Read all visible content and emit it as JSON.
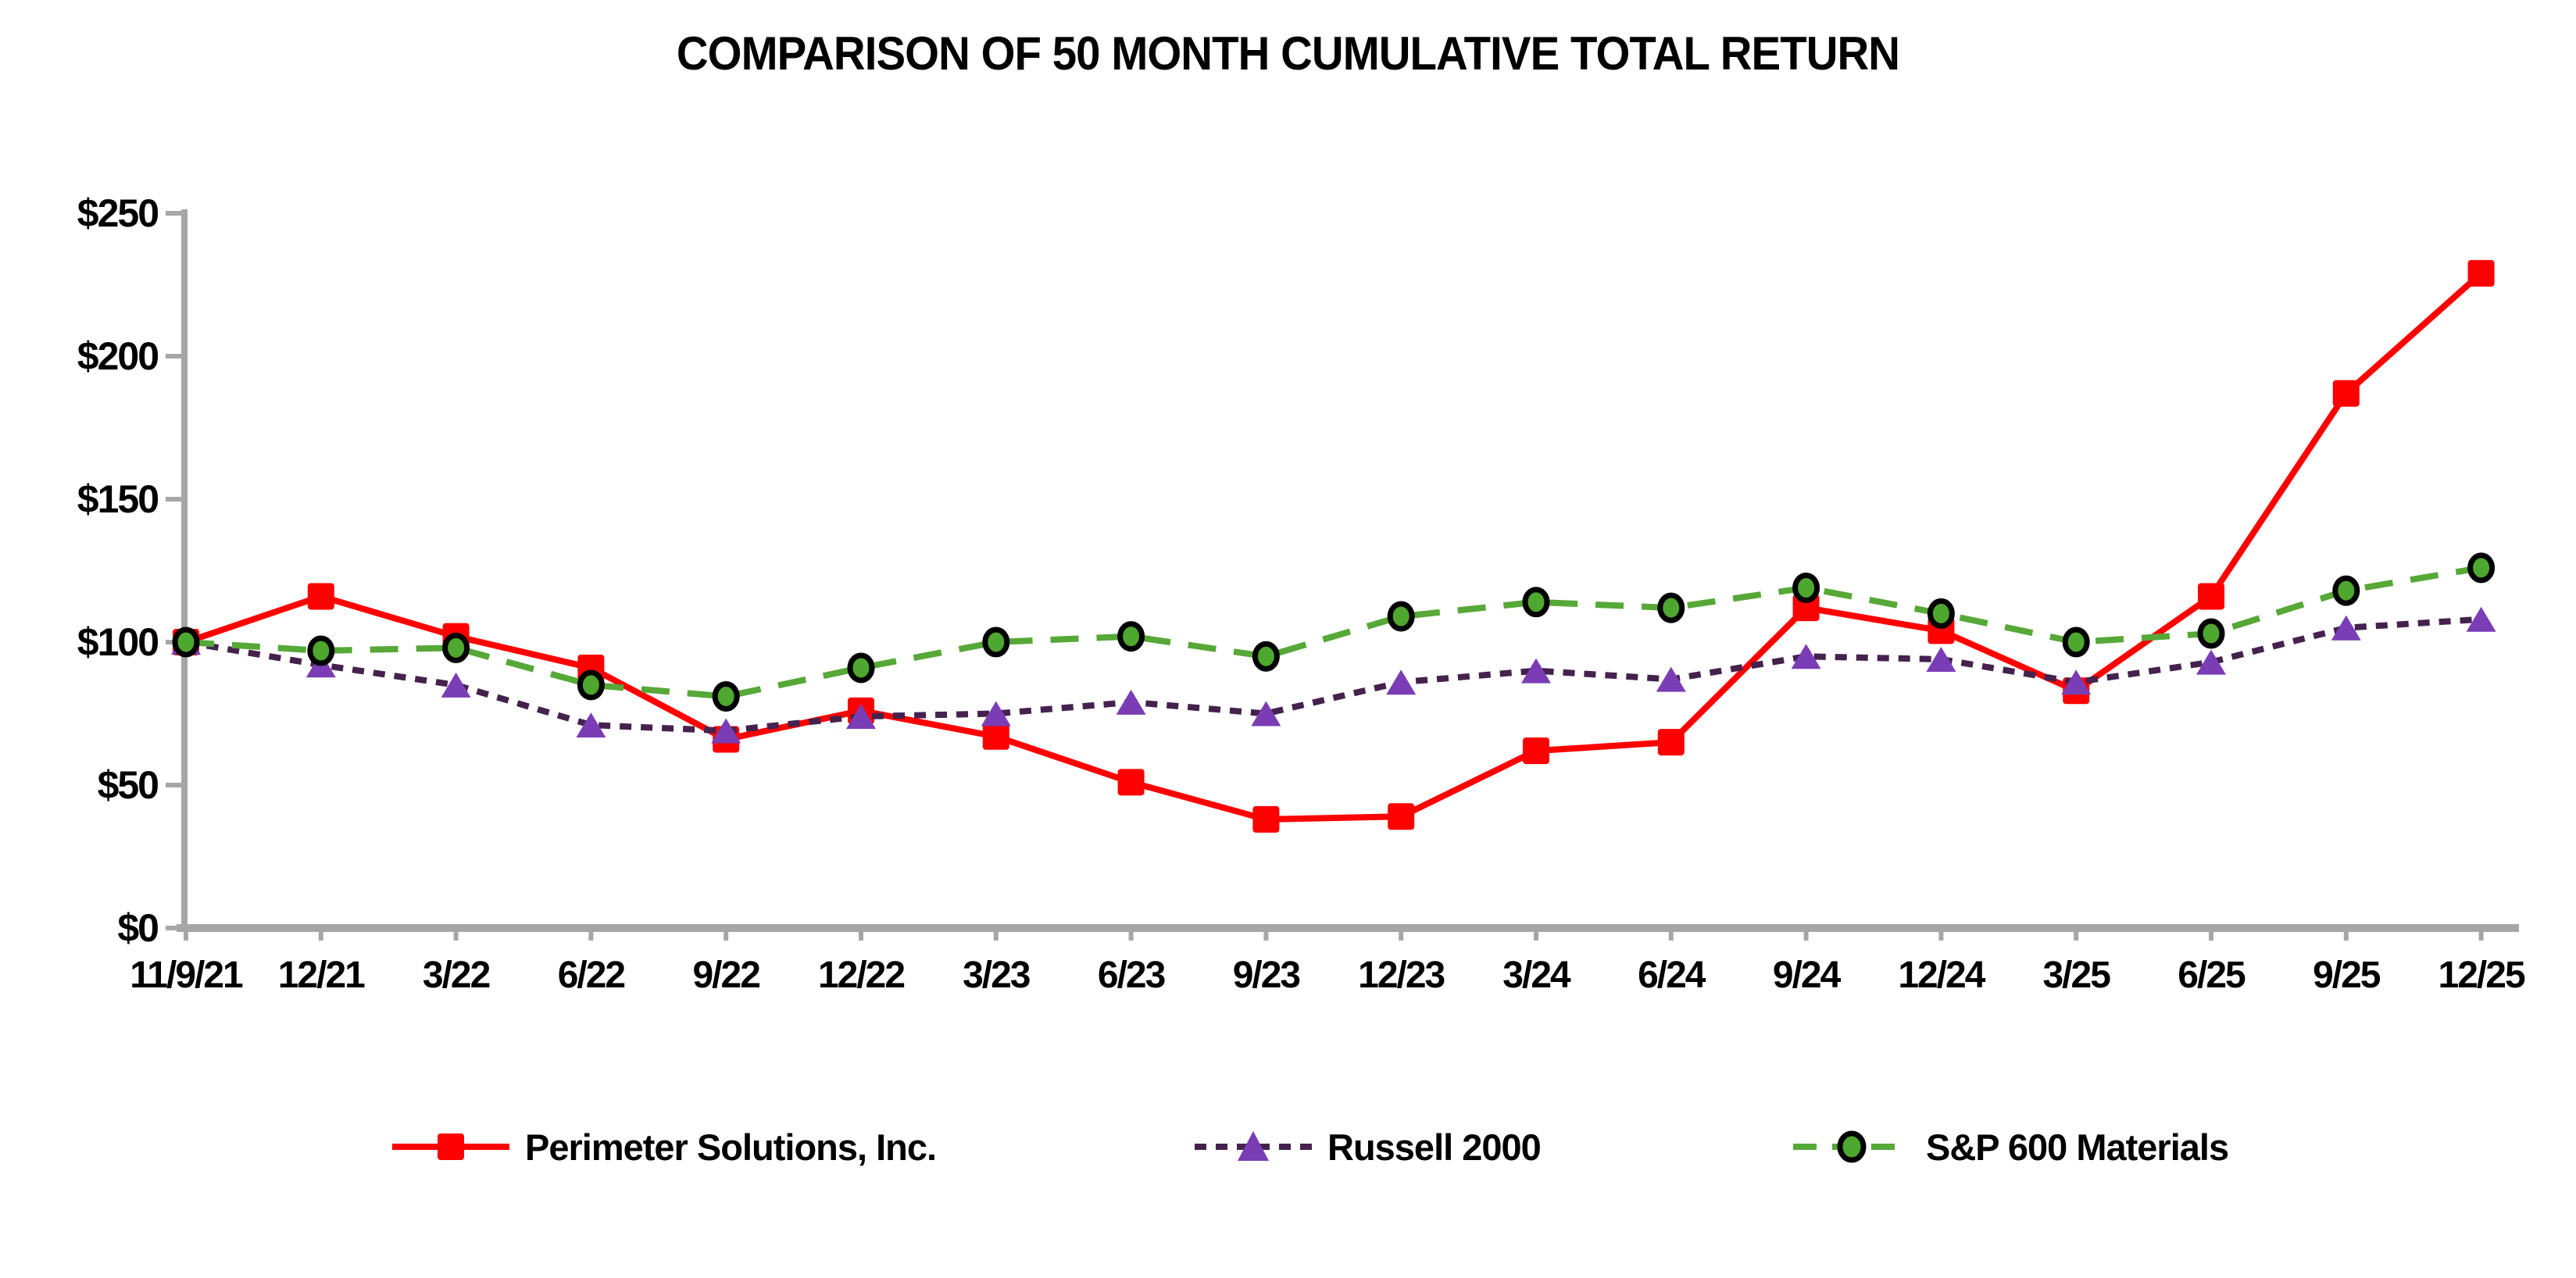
{
  "chart_data": {
    "type": "line",
    "title": "COMPARISON OF 50 MONTH CUMULATIVE TOTAL RETURN",
    "xlabel": "",
    "ylabel": "",
    "ylim": [
      0,
      250
    ],
    "grid": false,
    "legend_position": "bottom",
    "background_color": "#ffffff",
    "axis_color": "#a6a6a6",
    "text_color": "#000000",
    "y_ticks": [
      {
        "label": "$0",
        "value": 0
      },
      {
        "label": "$50",
        "value": 50
      },
      {
        "label": "$100",
        "value": 100
      },
      {
        "label": "$150",
        "value": 150
      },
      {
        "label": "$200",
        "value": 200
      },
      {
        "label": "$250",
        "value": 250
      }
    ],
    "categories": [
      "11/9/21",
      "12/21",
      "3/22",
      "6/22",
      "9/22",
      "12/22",
      "3/23",
      "6/23",
      "9/23",
      "12/23",
      "3/24",
      "6/24",
      "9/24",
      "12/24",
      "3/25",
      "6/25",
      "9/25",
      "12/25"
    ],
    "series": [
      {
        "name": "Perimeter Solutions, Inc.",
        "marker": "square",
        "line_style": "solid",
        "line_color": "#ff0000",
        "marker_color": "#ff0000",
        "values": [
          100,
          116,
          102,
          91,
          66,
          76,
          67,
          51,
          38,
          39,
          62,
          65,
          112,
          104,
          83,
          116,
          187,
          229
        ]
      },
      {
        "name": "Russell 2000",
        "marker": "triangle",
        "line_style": "dotted",
        "line_color": "#45224e",
        "marker_color": "#7a3db5",
        "values": [
          100,
          92,
          85,
          71,
          69,
          74,
          75,
          79,
          75,
          86,
          90,
          87,
          95,
          94,
          86,
          93,
          105,
          108
        ]
      },
      {
        "name": "S&P 600 Materials",
        "marker": "circle",
        "line_style": "dashed",
        "line_color": "#56a837",
        "marker_color": "#4ea72e",
        "marker_outline": "#000000",
        "values": [
          100,
          97,
          98,
          85,
          81,
          91,
          100,
          102,
          95,
          109,
          114,
          112,
          119,
          110,
          100,
          103,
          118,
          126
        ]
      }
    ]
  }
}
